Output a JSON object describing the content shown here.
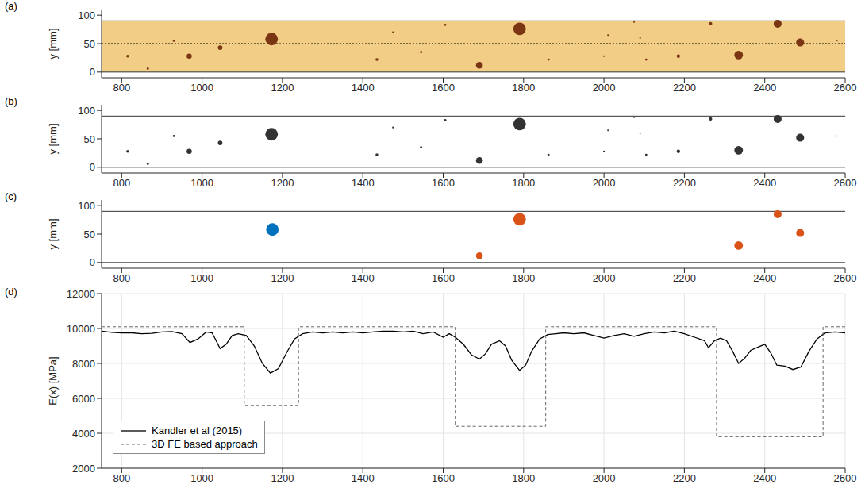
{
  "chart_data": [
    {
      "type": "scatter",
      "panel": "(a)",
      "y_label": "y [mm]",
      "xlim": [
        750,
        2600
      ],
      "xticks": [
        800,
        1000,
        1200,
        1400,
        1600,
        1800,
        2000,
        2200,
        2400,
        2600
      ],
      "ylim": [
        -10,
        110
      ],
      "yticks": [
        0,
        50,
        100
      ],
      "grid": false,
      "board_edges": [
        0,
        90
      ],
      "board_color": "#f2cd86",
      "centerline": 50,
      "color": "#7a3512",
      "knots": {
        "x": [
          815,
          865,
          930,
          968,
          1045,
          1173,
          1435,
          1475,
          1545,
          1605,
          1690,
          1790,
          1862,
          2000,
          2010,
          2075,
          2090,
          2105,
          2185,
          2265,
          2335,
          2432,
          2488,
          2580
        ],
        "y": [
          28,
          6,
          55,
          28,
          43,
          58,
          22,
          70,
          35,
          83,
          12,
          76,
          22,
          28,
          65,
          88,
          60,
          22,
          28,
          85,
          30,
          85,
          52,
          55
        ],
        "size": [
          5,
          4,
          4,
          9,
          8,
          22,
          5,
          3,
          4,
          4,
          12,
          22,
          4,
          3,
          3,
          3,
          3,
          4,
          6,
          6,
          15,
          14,
          14,
          2
        ]
      }
    },
    {
      "type": "scatter",
      "panel": "(b)",
      "y_label": "y [mm]",
      "xlim": [
        750,
        2600
      ],
      "xticks": [
        800,
        1000,
        1200,
        1400,
        1600,
        1800,
        2000,
        2200,
        2400,
        2600
      ],
      "ylim": [
        -10,
        110
      ],
      "yticks": [
        0,
        50,
        100
      ],
      "grid": false,
      "board_edges": [
        0,
        90
      ],
      "color": "#333333",
      "knots": {
        "x": [
          815,
          865,
          930,
          968,
          1045,
          1173,
          1435,
          1475,
          1545,
          1605,
          1690,
          1790,
          1862,
          2000,
          2010,
          2075,
          2090,
          2105,
          2185,
          2265,
          2335,
          2432,
          2488,
          2580
        ],
        "y": [
          28,
          6,
          55,
          28,
          43,
          58,
          22,
          70,
          35,
          83,
          12,
          76,
          22,
          28,
          65,
          88,
          60,
          22,
          28,
          85,
          30,
          85,
          52,
          55
        ],
        "size": [
          5,
          4,
          4,
          9,
          8,
          22,
          5,
          3,
          4,
          4,
          12,
          22,
          4,
          3,
          3,
          3,
          3,
          4,
          6,
          6,
          15,
          14,
          14,
          2
        ]
      }
    },
    {
      "type": "scatter",
      "panel": "(c)",
      "y_label": "y [mm]",
      "xlim": [
        750,
        2600
      ],
      "xticks": [
        800,
        1000,
        1200,
        1400,
        1600,
        1800,
        2000,
        2200,
        2400,
        2600
      ],
      "ylim": [
        -10,
        110
      ],
      "yticks": [
        0,
        50,
        100
      ],
      "grid": false,
      "board_edges": [
        0,
        90
      ],
      "knots": {
        "x": [
          1175,
          1690,
          1790,
          2335,
          2432,
          2488
        ],
        "y": [
          58,
          12,
          76,
          30,
          85,
          52
        ],
        "size": [
          22,
          12,
          22,
          15,
          14,
          14
        ]
      },
      "colors": [
        "#0072bd",
        "#d95319",
        "#d95319",
        "#d95319",
        "#d95319",
        "#d95319"
      ]
    },
    {
      "type": "line",
      "panel": "(d)",
      "y_label": "E(x) [MPa]",
      "xlim": [
        750,
        2600
      ],
      "xticks": [
        800,
        1000,
        1200,
        1400,
        1600,
        1800,
        2000,
        2200,
        2400,
        2600
      ],
      "ylim": [
        2000,
        12000
      ],
      "yticks": [
        2000,
        4000,
        6000,
        8000,
        10000,
        12000
      ],
      "grid": true,
      "legend": "lower left",
      "series": [
        {
          "name": "Kandler et al (2015)",
          "color": "#000000",
          "line_style": "solid",
          "x": [
            750,
            775,
            800,
            825,
            850,
            875,
            900,
            925,
            950,
            970,
            990,
            1010,
            1025,
            1045,
            1060,
            1075,
            1090,
            1110,
            1130,
            1150,
            1170,
            1190,
            1210,
            1230,
            1250,
            1275,
            1300,
            1325,
            1350,
            1375,
            1400,
            1425,
            1450,
            1475,
            1500,
            1525,
            1550,
            1575,
            1600,
            1615,
            1630,
            1650,
            1670,
            1690,
            1705,
            1720,
            1740,
            1755,
            1770,
            1790,
            1805,
            1820,
            1840,
            1860,
            1880,
            1900,
            1925,
            1950,
            1975,
            2000,
            2025,
            2050,
            2075,
            2100,
            2125,
            2150,
            2175,
            2200,
            2225,
            2250,
            2260,
            2275,
            2290,
            2305,
            2320,
            2335,
            2350,
            2365,
            2380,
            2400,
            2415,
            2430,
            2450,
            2470,
            2490,
            2510,
            2530,
            2550,
            2575,
            2600
          ],
          "values": [
            9850,
            9780,
            9750,
            9750,
            9700,
            9720,
            9800,
            9820,
            9700,
            9200,
            9400,
            9800,
            9750,
            8850,
            9100,
            9600,
            9700,
            9600,
            9000,
            8000,
            7450,
            7700,
            8600,
            9400,
            9700,
            9800,
            9750,
            9800,
            9750,
            9800,
            9750,
            9800,
            9850,
            9850,
            9800,
            9850,
            9700,
            9800,
            9500,
            9700,
            9500,
            9100,
            8500,
            8250,
            8550,
            9100,
            9300,
            9000,
            8200,
            7600,
            7900,
            8700,
            9400,
            9650,
            9700,
            9750,
            9700,
            9750,
            9600,
            9450,
            9600,
            9700,
            9550,
            9700,
            9800,
            9750,
            9850,
            9700,
            9500,
            9300,
            8900,
            9300,
            9450,
            9300,
            8700,
            8000,
            8300,
            8750,
            8900,
            9100,
            8600,
            7900,
            7850,
            7650,
            7800,
            8700,
            9400,
            9750,
            9800,
            9750
          ]
        },
        {
          "name": "3D FE based approach",
          "color": "#666666",
          "line_style": "dashed",
          "x": [
            750,
            1105,
            1105,
            1240,
            1240,
            1630,
            1630,
            1855,
            1855,
            2280,
            2280,
            2545,
            2545,
            2600
          ],
          "values": [
            10100,
            10100,
            5600,
            5600,
            10100,
            10100,
            4400,
            4400,
            10100,
            10100,
            3800,
            3800,
            10100,
            10100
          ]
        }
      ]
    }
  ]
}
